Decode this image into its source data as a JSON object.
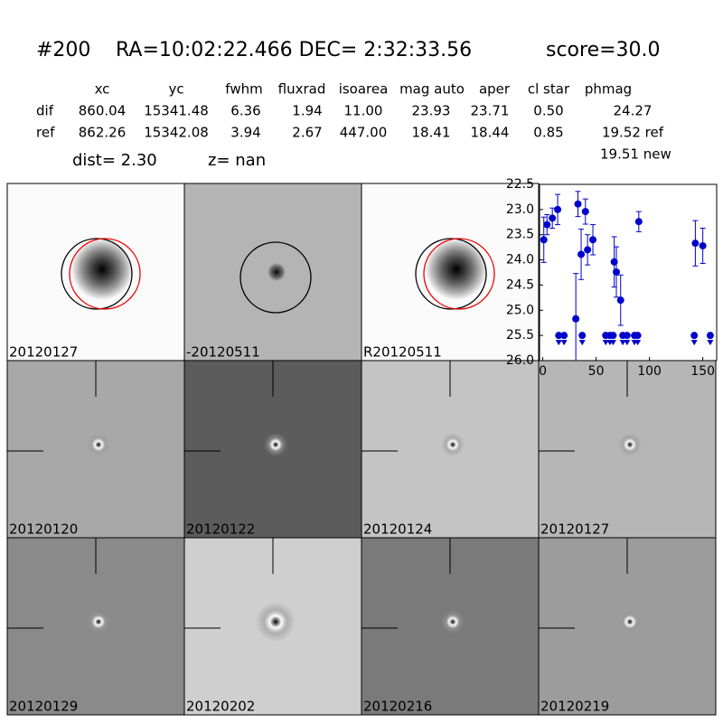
{
  "header": {
    "id": "#200",
    "coords": "RA=10:02:22.466 DEC= 2:32:33.56",
    "score": "score=30.0"
  },
  "table": {
    "columns": [
      "xc",
      "yc",
      "fwhm",
      "fluxrad",
      "isoarea",
      "mag auto",
      "aper",
      "cl star",
      "phmag"
    ],
    "rows": [
      [
        "dif",
        "860.04",
        "15341.48",
        "6.36",
        "1.94",
        "11.00",
        "23.93",
        "23.71",
        "0.50",
        "24.27"
      ],
      [
        "ref",
        "862.26",
        "15342.08",
        "3.94",
        "2.67",
        "447.00",
        "18.41",
        "18.44",
        "0.85",
        "19.52 ref"
      ]
    ],
    "extra": "19.51 new"
  },
  "dist": "dist=  2.30",
  "z": "z=   nan",
  "panels": [
    {
      "label": "20120127",
      "color": "#000000"
    },
    {
      "label": "-20120511",
      "color": "#000000"
    },
    {
      "label": "R20120511",
      "color": "#000000"
    },
    null,
    {
      "label": "20120120",
      "color": "#000000"
    },
    {
      "label": "20120122",
      "color": "#000000"
    },
    {
      "label": "20120124",
      "color": "#000000"
    },
    {
      "label": "20120127",
      "color": "#ff0000"
    },
    {
      "label": "20120129",
      "color": "#000000"
    },
    {
      "label": "20120202",
      "color": "#000000"
    },
    {
      "label": "20120216",
      "color": "#000000"
    },
    {
      "label": "20120219",
      "color": "#000000"
    }
  ],
  "chart_data": {
    "type": "errorbar",
    "color": "#0000cc",
    "xlim": [
      -3,
      163
    ],
    "xticks": [
      0,
      50,
      100,
      150
    ],
    "ylim": [
      26.0,
      22.5
    ],
    "yticks": [
      22.5,
      {
        "value": 23,
        "label": "23.0"
      },
      23.5,
      {
        "value": 24,
        "label": "24.0"
      },
      24.5,
      {
        "value": 25,
        "label": "25.0"
      },
      25.5,
      {
        "value": 26,
        "label": "26.0"
      }
    ],
    "points": {
      "x": [
        1,
        4,
        9,
        14,
        31,
        33,
        36,
        40,
        42,
        47,
        67,
        69,
        73,
        90,
        143,
        150
      ],
      "values": [
        23.6,
        23.3,
        23.17,
        23.0,
        25.17,
        22.89,
        23.89,
        23.04,
        23.8,
        23.6,
        24.04,
        24.24,
        24.8,
        23.24,
        23.67,
        23.72
      ],
      "errors": [
        0.45,
        0.2,
        0.2,
        0.3,
        0.9,
        0.25,
        0.5,
        0.25,
        0.3,
        0.3,
        0.5,
        0.5,
        0.5,
        0.2,
        0.45,
        0.35
      ]
    },
    "limits": {
      "x": [
        15,
        20,
        37,
        59,
        63,
        66,
        75,
        79,
        86,
        89,
        142,
        157
      ],
      "values": [
        25.5,
        25.5,
        25.5,
        25.5,
        25.5,
        25.5,
        25.5,
        25.5,
        25.5,
        25.5,
        25.5,
        25.5
      ]
    }
  }
}
